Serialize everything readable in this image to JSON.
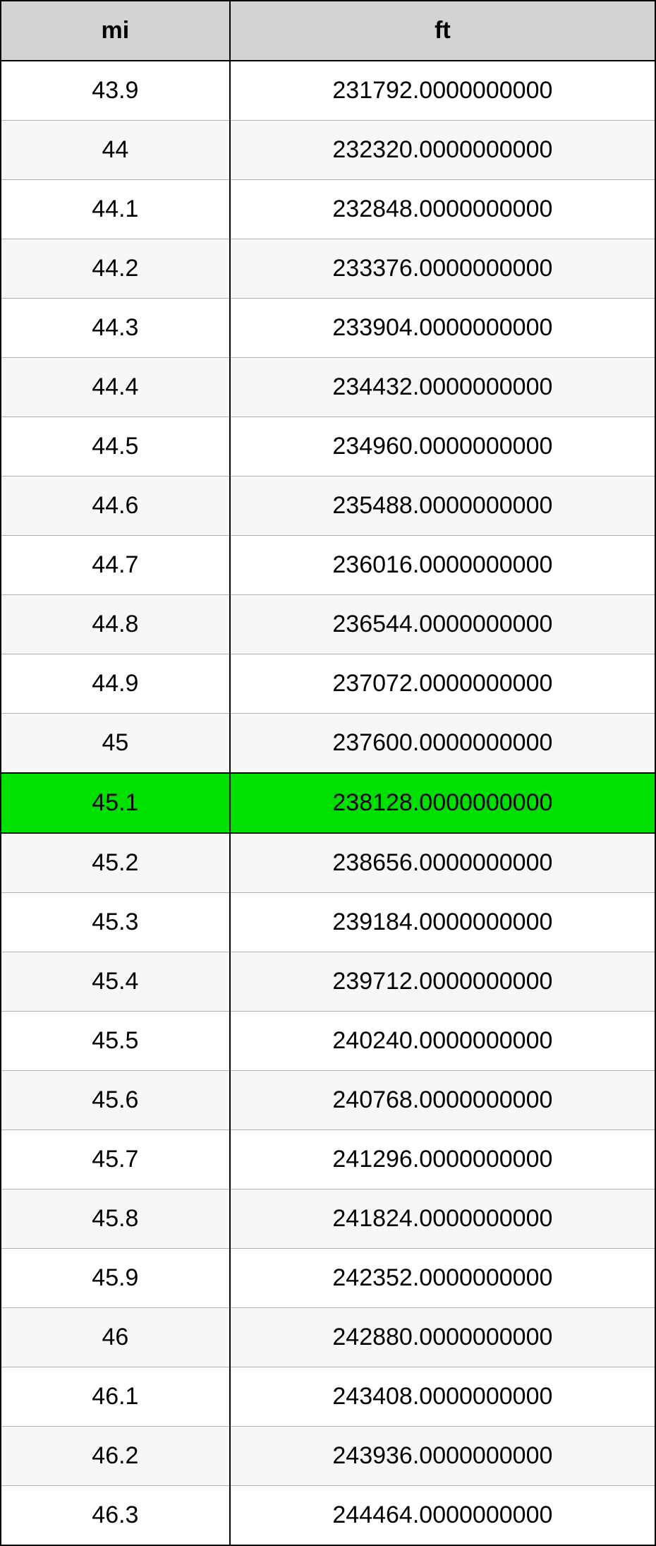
{
  "table": {
    "columns": [
      "mi",
      "ft"
    ],
    "header_bg": "#d3d3d3",
    "border_color": "#000000",
    "row_alt_bg": "#f7f7f7",
    "highlight_bg": "#00e000",
    "highlight_index": 12,
    "font_size": 34,
    "rows": [
      [
        "43.9",
        "231792.0000000000"
      ],
      [
        "44",
        "232320.0000000000"
      ],
      [
        "44.1",
        "232848.0000000000"
      ],
      [
        "44.2",
        "233376.0000000000"
      ],
      [
        "44.3",
        "233904.0000000000"
      ],
      [
        "44.4",
        "234432.0000000000"
      ],
      [
        "44.5",
        "234960.0000000000"
      ],
      [
        "44.6",
        "235488.0000000000"
      ],
      [
        "44.7",
        "236016.0000000000"
      ],
      [
        "44.8",
        "236544.0000000000"
      ],
      [
        "44.9",
        "237072.0000000000"
      ],
      [
        "45",
        "237600.0000000000"
      ],
      [
        "45.1",
        "238128.0000000000"
      ],
      [
        "45.2",
        "238656.0000000000"
      ],
      [
        "45.3",
        "239184.0000000000"
      ],
      [
        "45.4",
        "239712.0000000000"
      ],
      [
        "45.5",
        "240240.0000000000"
      ],
      [
        "45.6",
        "240768.0000000000"
      ],
      [
        "45.7",
        "241296.0000000000"
      ],
      [
        "45.8",
        "241824.0000000000"
      ],
      [
        "45.9",
        "242352.0000000000"
      ],
      [
        "46",
        "242880.0000000000"
      ],
      [
        "46.1",
        "243408.0000000000"
      ],
      [
        "46.2",
        "243936.0000000000"
      ],
      [
        "46.3",
        "244464.0000000000"
      ]
    ]
  }
}
